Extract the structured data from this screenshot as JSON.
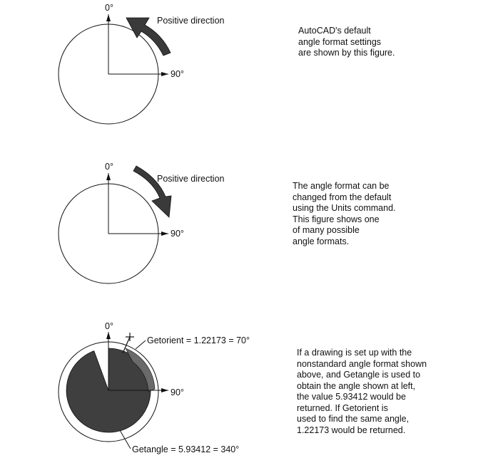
{
  "figures": [
    {
      "zero_label": "0°",
      "ninety_label": "90°",
      "direction_label": "Positive direction",
      "description": "AutoCAD's default\nangle format settings\nare shown by this figure."
    },
    {
      "zero_label": "0°",
      "ninety_label": "90°",
      "direction_label": "Positive direction",
      "description": "The angle format can be\nchanged from the default\nusing the Units command.\nThis figure shows one\nof many possible\nangle formats."
    },
    {
      "zero_label": "0°",
      "ninety_label": "90°",
      "getorient_label": "Getorient = 1.22173 = 70°",
      "getangle_label": "Getangle = 5.93412 = 340°",
      "description": "If a drawing is set up with the\nnonstandard angle format shown\nabove, and Getangle is used to\nobtain the angle shown at left,\nthe value 5.93412 would be\nreturned. If Getorient is\nused to find the same angle,\n1.22173 would be returned."
    }
  ],
  "colors": {
    "line": "#111111",
    "arrow_fill": "#3a3a3a",
    "sector_dark": "#3f3f3f",
    "sector_light": "#6a6a6a"
  }
}
